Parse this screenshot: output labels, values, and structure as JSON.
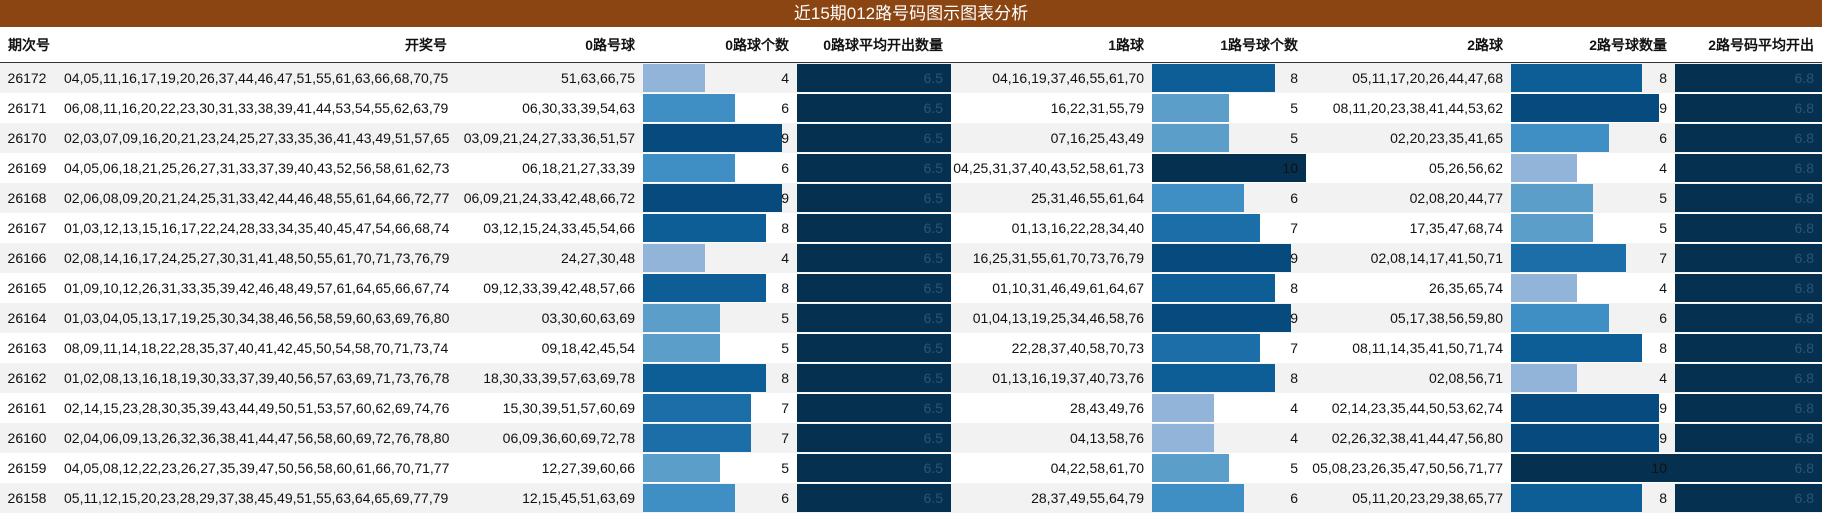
{
  "title": "近15期012路号码图示图表分析",
  "columns": [
    "期次号",
    "开奖号",
    "0路号球",
    "0路球个数",
    "0路球平均开出数量",
    "1路球",
    "1路号球个数",
    "2路球",
    "2路号球数量",
    "2路号码平均开出"
  ],
  "colors": {
    "title_bg": "#8b4513",
    "avg_bar": "#053050",
    "header_rule": "#333333"
  },
  "chart_data": {
    "type": "table",
    "title": "近15期012路号码图示图表分析",
    "bar_scale_max": 10,
    "rows": [
      {
        "period": "26172",
        "draw": "04,05,11,16,17,19,20,26,37,44,46,47,51,55,61,63,66,68,70,75",
        "r0": "51,63,66,75",
        "r0_count": 4,
        "r0_avg": 6.5,
        "r1": "04,16,19,37,46,55,61,70",
        "r1_count": 8,
        "r2": "05,11,17,20,26,44,47,68",
        "r2_count": 8,
        "r2_avg": 6.8
      },
      {
        "period": "26171",
        "draw": "06,08,11,16,20,22,23,30,31,33,38,39,41,44,53,54,55,62,63,79",
        "r0": "06,30,33,39,54,63",
        "r0_count": 6,
        "r0_avg": 6.5,
        "r1": "16,22,31,55,79",
        "r1_count": 5,
        "r2": "08,11,20,23,38,41,44,53,62",
        "r2_count": 9,
        "r2_avg": 6.8
      },
      {
        "period": "26170",
        "draw": "02,03,07,09,16,20,21,23,24,25,27,33,35,36,41,43,49,51,57,65",
        "r0": "03,09,21,24,27,33,36,51,57",
        "r0_count": 9,
        "r0_avg": 6.5,
        "r1": "07,16,25,43,49",
        "r1_count": 5,
        "r2": "02,20,23,35,41,65",
        "r2_count": 6,
        "r2_avg": 6.8
      },
      {
        "period": "26169",
        "draw": "04,05,06,18,21,25,26,27,31,33,37,39,40,43,52,56,58,61,62,73",
        "r0": "06,18,21,27,33,39",
        "r0_count": 6,
        "r0_avg": 6.5,
        "r1": "04,25,31,37,40,43,52,58,61,73",
        "r1_count": 10,
        "r2": "05,26,56,62",
        "r2_count": 4,
        "r2_avg": 6.8
      },
      {
        "period": "26168",
        "draw": "02,06,08,09,20,21,24,25,31,33,42,44,46,48,55,61,64,66,72,77",
        "r0": "06,09,21,24,33,42,48,66,72",
        "r0_count": 9,
        "r0_avg": 6.5,
        "r1": "25,31,46,55,61,64",
        "r1_count": 6,
        "r2": "02,08,20,44,77",
        "r2_count": 5,
        "r2_avg": 6.8
      },
      {
        "period": "26167",
        "draw": "01,03,12,13,15,16,17,22,24,28,33,34,35,40,45,47,54,66,68,74",
        "r0": "03,12,15,24,33,45,54,66",
        "r0_count": 8,
        "r0_avg": 6.5,
        "r1": "01,13,16,22,28,34,40",
        "r1_count": 7,
        "r2": "17,35,47,68,74",
        "r2_count": 5,
        "r2_avg": 6.8
      },
      {
        "period": "26166",
        "draw": "02,08,14,16,17,24,25,27,30,31,41,48,50,55,61,70,71,73,76,79",
        "r0": "24,27,30,48",
        "r0_count": 4,
        "r0_avg": 6.5,
        "r1": "16,25,31,55,61,70,73,76,79",
        "r1_count": 9,
        "r2": "02,08,14,17,41,50,71",
        "r2_count": 7,
        "r2_avg": 6.8
      },
      {
        "period": "26165",
        "draw": "01,09,10,12,26,31,33,35,39,42,46,48,49,57,61,64,65,66,67,74",
        "r0": "09,12,33,39,42,48,57,66",
        "r0_count": 8,
        "r0_avg": 6.5,
        "r1": "01,10,31,46,49,61,64,67",
        "r1_count": 8,
        "r2": "26,35,65,74",
        "r2_count": 4,
        "r2_avg": 6.8
      },
      {
        "period": "26164",
        "draw": "01,03,04,05,13,17,19,25,30,34,38,46,56,58,59,60,63,69,76,80",
        "r0": "03,30,60,63,69",
        "r0_count": 5,
        "r0_avg": 6.5,
        "r1": "01,04,13,19,25,34,46,58,76",
        "r1_count": 9,
        "r2": "05,17,38,56,59,80",
        "r2_count": 6,
        "r2_avg": 6.8
      },
      {
        "period": "26163",
        "draw": "08,09,11,14,18,22,28,35,37,40,41,42,45,50,54,58,70,71,73,74",
        "r0": "09,18,42,45,54",
        "r0_count": 5,
        "r0_avg": 6.5,
        "r1": "22,28,37,40,58,70,73",
        "r1_count": 7,
        "r2": "08,11,14,35,41,50,71,74",
        "r2_count": 8,
        "r2_avg": 6.8
      },
      {
        "period": "26162",
        "draw": "01,02,08,13,16,18,19,30,33,37,39,40,56,57,63,69,71,73,76,78",
        "r0": "18,30,33,39,57,63,69,78",
        "r0_count": 8,
        "r0_avg": 6.5,
        "r1": "01,13,16,19,37,40,73,76",
        "r1_count": 8,
        "r2": "02,08,56,71",
        "r2_count": 4,
        "r2_avg": 6.8
      },
      {
        "period": "26161",
        "draw": "02,14,15,23,28,30,35,39,43,44,49,50,51,53,57,60,62,69,74,76",
        "r0": "15,30,39,51,57,60,69",
        "r0_count": 7,
        "r0_avg": 6.5,
        "r1": "28,43,49,76",
        "r1_count": 4,
        "r2": "02,14,23,35,44,50,53,62,74",
        "r2_count": 9,
        "r2_avg": 6.8
      },
      {
        "period": "26160",
        "draw": "02,04,06,09,13,26,32,36,38,41,44,47,56,58,60,69,72,76,78,80",
        "r0": "06,09,36,60,69,72,78",
        "r0_count": 7,
        "r0_avg": 6.5,
        "r1": "04,13,58,76",
        "r1_count": 4,
        "r2": "02,26,32,38,41,44,47,56,80",
        "r2_count": 9,
        "r2_avg": 6.8
      },
      {
        "period": "26159",
        "draw": "04,05,08,12,22,23,26,27,35,39,47,50,56,58,60,61,66,70,71,77",
        "r0": "12,27,39,60,66",
        "r0_count": 5,
        "r0_avg": 6.5,
        "r1": "04,22,58,61,70",
        "r1_count": 5,
        "r2": "05,08,23,26,35,47,50,56,71,77",
        "r2_count": 10,
        "r2_avg": 6.8
      },
      {
        "period": "26158",
        "draw": "05,11,12,15,20,23,28,29,37,38,45,49,51,55,63,64,65,69,77,79",
        "r0": "12,15,45,51,63,69",
        "r0_count": 6,
        "r0_avg": 6.5,
        "r1": "28,37,49,55,64,79",
        "r1_count": 6,
        "r2": "05,11,20,23,29,38,65,77",
        "r2_count": 8,
        "r2_avg": 6.8
      }
    ]
  }
}
